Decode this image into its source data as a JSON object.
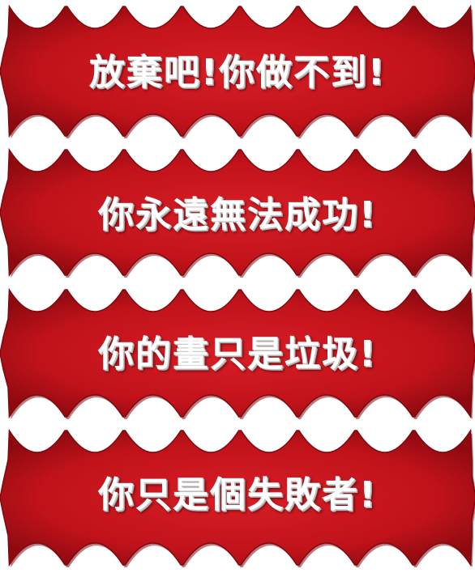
{
  "banners": [
    {
      "text": "放棄吧!你做不到!"
    },
    {
      "text": "你永遠無法成功!"
    },
    {
      "text": "你的畫只是垃圾!"
    },
    {
      "text": "你只是個失敗者!"
    }
  ],
  "colors": {
    "banner_red": "#c8141c",
    "banner_dark_red": "#8a0a10",
    "text": "#ffffff",
    "background": "#ffffff"
  }
}
